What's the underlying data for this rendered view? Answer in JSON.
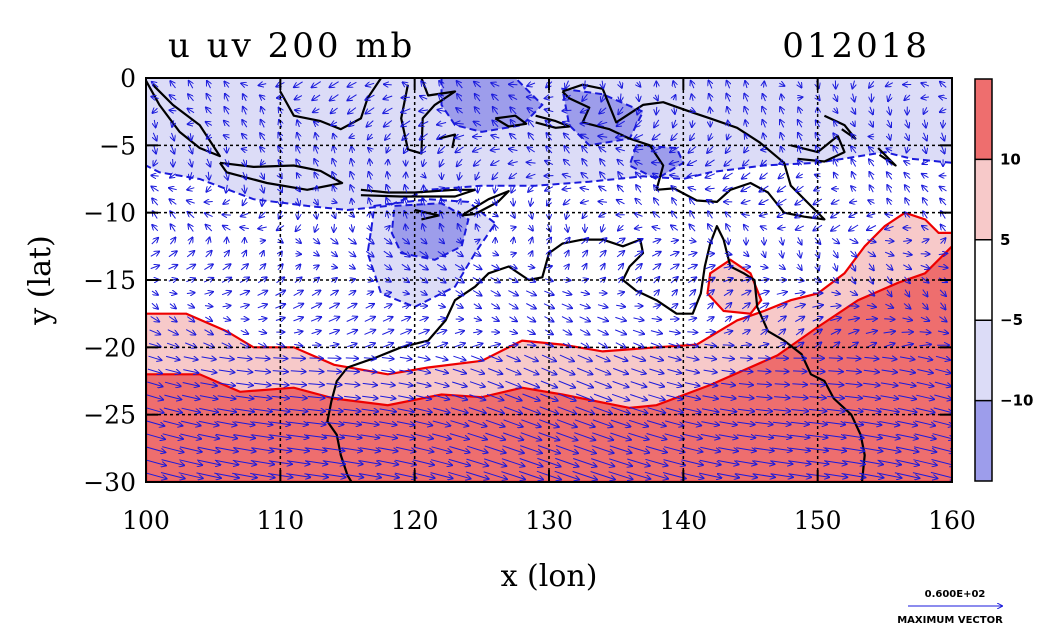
{
  "chart_data": {
    "type": "heatmap",
    "title_left": "u uv 200 mb",
    "title_right": "012018",
    "xlabel": "x (lon)",
    "ylabel": "y (lat)",
    "xlim": [
      100,
      160
    ],
    "ylim": [
      -30,
      0
    ],
    "x_ticks": [
      100,
      110,
      120,
      130,
      140,
      150,
      160
    ],
    "y_ticks": [
      0,
      -5,
      -10,
      -15,
      -20,
      -25,
      -30
    ],
    "grid": true,
    "colorbar": {
      "labels": [
        "10",
        "5",
        "−5",
        "−10"
      ],
      "bands": [
        {
          "range": [
            10,
            15
          ],
          "color": "#ee6e6e"
        },
        {
          "range": [
            5,
            10
          ],
          "color": "#f7c9c9"
        },
        {
          "range": [
            -5,
            5
          ],
          "color": "#ffffff"
        },
        {
          "range": [
            -10,
            -5
          ],
          "color": "#dcdcf7"
        },
        {
          "range": [
            -15,
            -10
          ],
          "color": "#9d9deb"
        }
      ]
    },
    "vector_key": {
      "value": "0.600E+02",
      "label": "MAXIMUM VECTOR"
    },
    "colors": {
      "positive_contour": "#ee0000",
      "negative_contour": "#1a1adc",
      "vectors": "#1a1adc",
      "coast": "#000000"
    },
    "regions": [
      {
        "level": 10,
        "polygon": [
          [
            100,
            -22
          ],
          [
            104,
            -22
          ],
          [
            107,
            -23.3
          ],
          [
            111,
            -23
          ],
          [
            114,
            -23.8
          ],
          [
            118,
            -24.3
          ],
          [
            122,
            -23.5
          ],
          [
            125,
            -23.7
          ],
          [
            128,
            -23
          ],
          [
            131,
            -23.5
          ],
          [
            136,
            -24.5
          ],
          [
            138,
            -24.3
          ],
          [
            142,
            -22.8
          ],
          [
            147,
            -20.6
          ],
          [
            150,
            -18.5
          ],
          [
            153,
            -16.5
          ],
          [
            156,
            -15.2
          ],
          [
            158,
            -14.5
          ],
          [
            160,
            -12.5
          ],
          [
            160,
            -30
          ],
          [
            100,
            -30
          ]
        ]
      },
      {
        "level": 5,
        "polygon": [
          [
            100,
            -17.5
          ],
          [
            103,
            -17.5
          ],
          [
            106,
            -18.8
          ],
          [
            108,
            -20
          ],
          [
            111,
            -20
          ],
          [
            114,
            -21.3
          ],
          [
            118,
            -22
          ],
          [
            121,
            -21.5
          ],
          [
            125,
            -21
          ],
          [
            128,
            -19.5
          ],
          [
            131,
            -19.8
          ],
          [
            134,
            -20.3
          ],
          [
            138,
            -20
          ],
          [
            141,
            -19.8
          ],
          [
            144,
            -18
          ],
          [
            146,
            -17.3
          ],
          [
            148,
            -16.5
          ],
          [
            150,
            -16
          ],
          [
            152,
            -14.5
          ],
          [
            153.5,
            -12.5
          ],
          [
            155,
            -11
          ],
          [
            156.5,
            -10
          ],
          [
            158,
            -10.5
          ],
          [
            159,
            -11.5
          ],
          [
            160,
            -11.5
          ],
          [
            160,
            -30
          ],
          [
            100,
            -30
          ]
        ]
      },
      {
        "level": 5,
        "polygon": [
          [
            142,
            -14.5
          ],
          [
            143.5,
            -13.5
          ],
          [
            145,
            -14.5
          ],
          [
            145.8,
            -16.5
          ],
          [
            145,
            -17.5
          ],
          [
            143,
            -17.3
          ],
          [
            141.8,
            -16
          ]
        ]
      },
      {
        "level": -5,
        "polygon": [
          [
            100,
            0
          ],
          [
            160,
            0
          ],
          [
            160,
            -6.3
          ],
          [
            157,
            -6
          ],
          [
            155,
            -5.5
          ],
          [
            150,
            -6.3
          ],
          [
            146,
            -6.5
          ],
          [
            142,
            -7
          ],
          [
            140,
            -7.5
          ],
          [
            137,
            -7.3
          ],
          [
            133,
            -7.7
          ],
          [
            129,
            -8
          ],
          [
            125,
            -8
          ],
          [
            121,
            -8.3
          ],
          [
            118,
            -9.5
          ],
          [
            115,
            -9.8
          ],
          [
            112,
            -9.5
          ],
          [
            108,
            -9
          ],
          [
            104,
            -7.5
          ],
          [
            101,
            -7
          ],
          [
            100,
            -6.5
          ]
        ]
      },
      {
        "level": -5,
        "polygon": [
          [
            117,
            -9.5
          ],
          [
            121,
            -9
          ],
          [
            124,
            -9.2
          ],
          [
            126,
            -10.8
          ],
          [
            124.5,
            -13
          ],
          [
            123,
            -15.5
          ],
          [
            120,
            -17
          ],
          [
            117.5,
            -16
          ],
          [
            116.5,
            -13
          ],
          [
            116.8,
            -11
          ]
        ]
      },
      {
        "level": -10,
        "polygon": [
          [
            122,
            0
          ],
          [
            127.5,
            0
          ],
          [
            129.5,
            -2
          ],
          [
            128,
            -3.5
          ],
          [
            125,
            -4
          ],
          [
            123,
            -3.5
          ],
          [
            122,
            -2
          ]
        ]
      },
      {
        "level": -10,
        "polygon": [
          [
            118.5,
            -9.5
          ],
          [
            122,
            -9.3
          ],
          [
            124,
            -10.5
          ],
          [
            123.5,
            -12.5
          ],
          [
            121.5,
            -13.5
          ],
          [
            119,
            -13
          ],
          [
            118.3,
            -11.5
          ]
        ]
      },
      {
        "level": -10,
        "polygon": [
          [
            131,
            -0.8
          ],
          [
            134,
            -1.2
          ],
          [
            137,
            -2.5
          ],
          [
            136,
            -4.5
          ],
          [
            133,
            -5
          ],
          [
            131.5,
            -3.5
          ]
        ]
      },
      {
        "level": -10,
        "polygon": [
          [
            136.5,
            -5
          ],
          [
            139.5,
            -5.2
          ],
          [
            140,
            -6.3
          ],
          [
            138,
            -7.5
          ],
          [
            136,
            -6.5
          ]
        ]
      }
    ],
    "coastlines": [
      [
        [
          115,
          -21.5
        ],
        [
          114.2,
          -22.5
        ],
        [
          113.8,
          -24
        ],
        [
          113.5,
          -25.5
        ],
        [
          114.2,
          -26.5
        ],
        [
          114.5,
          -28
        ],
        [
          115,
          -29.5
        ],
        [
          115.3,
          -30
        ]
      ],
      [
        [
          115,
          -21.5
        ],
        [
          117,
          -20.8
        ],
        [
          119,
          -20
        ],
        [
          121,
          -19.5
        ],
        [
          122.3,
          -18
        ],
        [
          123,
          -16.5
        ],
        [
          124.5,
          -15.5
        ],
        [
          125.5,
          -14.5
        ],
        [
          127,
          -14
        ],
        [
          128.5,
          -15
        ],
        [
          129.5,
          -14.8
        ],
        [
          130,
          -13
        ],
        [
          131,
          -12.3
        ],
        [
          132.5,
          -12
        ],
        [
          134,
          -12
        ],
        [
          135.5,
          -12.5
        ],
        [
          136.8,
          -12
        ],
        [
          137,
          -13
        ],
        [
          136,
          -14
        ],
        [
          135.5,
          -15
        ],
        [
          136.5,
          -15.8
        ],
        [
          138,
          -16.5
        ],
        [
          139.5,
          -17.5
        ],
        [
          140.7,
          -17.5
        ],
        [
          141.3,
          -16
        ],
        [
          141.6,
          -14
        ],
        [
          142,
          -12.3
        ],
        [
          142.5,
          -11
        ],
        [
          143,
          -12
        ],
        [
          143.5,
          -14
        ],
        [
          144.5,
          -14.5
        ],
        [
          145.3,
          -15
        ],
        [
          145.5,
          -17
        ],
        [
          146.3,
          -18.8
        ],
        [
          147.5,
          -19.5
        ],
        [
          148.8,
          -20.5
        ],
        [
          149.5,
          -22
        ],
        [
          150.5,
          -22.5
        ],
        [
          151.2,
          -23.8
        ],
        [
          152.5,
          -25
        ],
        [
          153.2,
          -26.5
        ],
        [
          153.5,
          -28
        ],
        [
          153.3,
          -30
        ]
      ],
      [
        [
          100.5,
          -0.5
        ],
        [
          102,
          -2
        ],
        [
          104,
          -3.5
        ],
        [
          105.5,
          -5.8
        ],
        [
          104,
          -5.2
        ],
        [
          102.5,
          -4
        ],
        [
          101,
          -2
        ],
        [
          100,
          -0.2
        ]
      ],
      [
        [
          105.5,
          -6.3
        ],
        [
          108,
          -6.6
        ],
        [
          111,
          -6.5
        ],
        [
          113,
          -6.9
        ],
        [
          114.6,
          -7.8
        ],
        [
          112,
          -8.3
        ],
        [
          109,
          -7.8
        ],
        [
          106,
          -7
        ],
        [
          105.5,
          -6.3
        ]
      ],
      [
        [
          116,
          -8.3
        ],
        [
          118,
          -8.5
        ],
        [
          120,
          -8.5
        ],
        [
          123,
          -8.3
        ],
        [
          124.5,
          -8.3
        ],
        [
          123,
          -8.8
        ],
        [
          119,
          -8.8
        ],
        [
          116,
          -8.7
        ]
      ],
      [
        [
          120,
          -9.8
        ],
        [
          121.8,
          -10.2
        ],
        [
          120.5,
          -10.5
        ]
      ],
      [
        [
          123.5,
          -10.2
        ],
        [
          125.5,
          -9
        ],
        [
          127,
          -8.4
        ],
        [
          126.2,
          -9.2
        ],
        [
          124.5,
          -10.1
        ],
        [
          123.5,
          -10.2
        ]
      ],
      [
        [
          110,
          -1
        ],
        [
          111,
          -2.8
        ],
        [
          113,
          -3.2
        ],
        [
          114.5,
          -3.8
        ],
        [
          116,
          -3
        ],
        [
          116.5,
          -1.5
        ],
        [
          117.5,
          0
        ]
      ],
      [
        [
          119.5,
          -0.5
        ],
        [
          119,
          -3
        ],
        [
          119.5,
          -5.3
        ],
        [
          120.5,
          -5.6
        ],
        [
          120.6,
          -3
        ],
        [
          121.5,
          -2
        ],
        [
          123,
          -1
        ],
        [
          121,
          -1.3
        ],
        [
          120.5,
          0
        ]
      ],
      [
        [
          121.8,
          -4.5
        ],
        [
          123,
          -4.2
        ],
        [
          122.8,
          -5.2
        ]
      ],
      [
        [
          126,
          -3
        ],
        [
          127,
          -3.6
        ],
        [
          128.3,
          -3.4
        ],
        [
          127.5,
          -2.8
        ],
        [
          126,
          -3
        ]
      ],
      [
        [
          129,
          -2.8
        ],
        [
          130.5,
          -3.2
        ],
        [
          131.5,
          -3.6
        ],
        [
          130.5,
          -3.7
        ],
        [
          129,
          -3.3
        ]
      ],
      [
        [
          131,
          -1
        ],
        [
          132.5,
          -0.5
        ],
        [
          134,
          -0.8
        ],
        [
          135,
          -3.3
        ],
        [
          137,
          -2
        ],
        [
          138.5,
          -1.8
        ],
        [
          140.5,
          -2.5
        ],
        [
          142,
          -3
        ],
        [
          144,
          -3.7
        ],
        [
          145.7,
          -4.8
        ],
        [
          147.5,
          -6.3
        ],
        [
          148,
          -8
        ],
        [
          149.5,
          -9.5
        ],
        [
          150.5,
          -10.5
        ],
        [
          149,
          -10.3
        ],
        [
          147.5,
          -10
        ],
        [
          146.3,
          -8.5
        ],
        [
          145,
          -7.8
        ],
        [
          143.5,
          -8.3
        ],
        [
          142.5,
          -9.2
        ],
        [
          141,
          -9.1
        ],
        [
          139.3,
          -8.2
        ],
        [
          138,
          -8.3
        ],
        [
          138.5,
          -6.5
        ],
        [
          137.5,
          -5
        ],
        [
          136,
          -4.5
        ],
        [
          134.5,
          -3.8
        ],
        [
          132.5,
          -3.3
        ],
        [
          133,
          -2.2
        ],
        [
          131.5,
          -1.5
        ],
        [
          131,
          -1
        ]
      ],
      [
        [
          148,
          -5
        ],
        [
          150,
          -5.5
        ],
        [
          151.5,
          -4.3
        ],
        [
          152,
          -5.5
        ],
        [
          150.5,
          -6.2
        ],
        [
          148.5,
          -6
        ]
      ],
      [
        [
          150.5,
          -2.8
        ],
        [
          152,
          -3.5
        ],
        [
          152.8,
          -4.5
        ],
        [
          151.8,
          -3.8
        ]
      ],
      [
        [
          154.5,
          -5.2
        ],
        [
          155.8,
          -6.5
        ],
        [
          154.6,
          -5.7
        ]
      ]
    ],
    "vector_field": {
      "nx": 45,
      "ny": 31,
      "description": "easterlies/weak flow north of ~20S, strong westerlies to the south"
    }
  }
}
